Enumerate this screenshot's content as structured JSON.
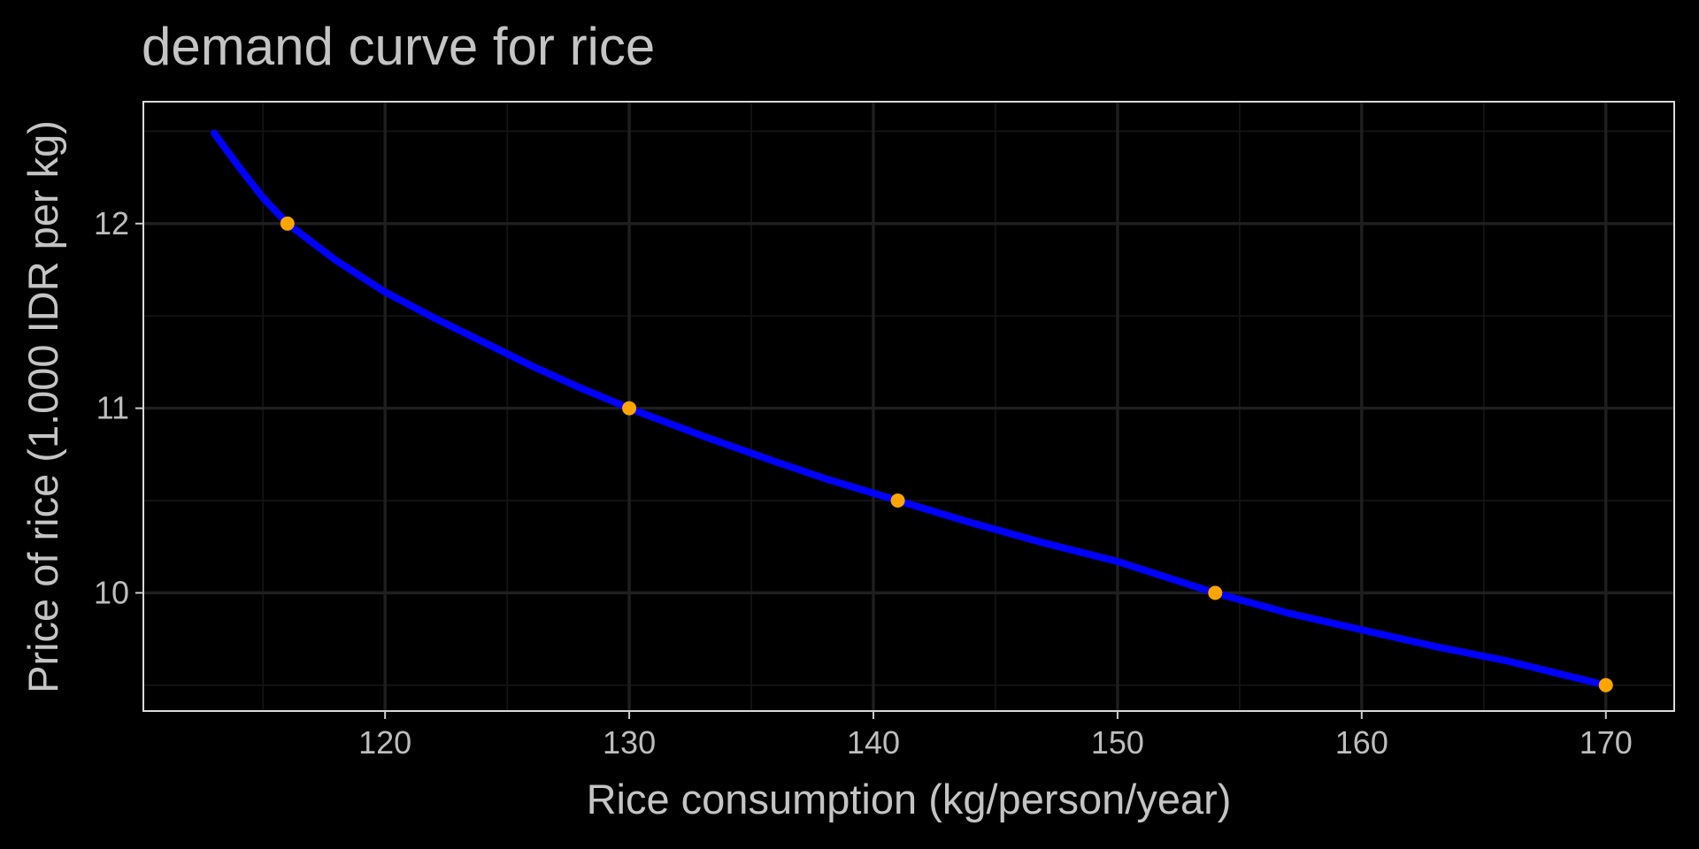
{
  "chart_data": {
    "type": "line",
    "title": "demand curve for rice",
    "xlabel": "Rice consumption (kg/person/year)",
    "ylabel": "Price of rice (1.000 IDR per kg)",
    "xlim": [
      110.1,
      172.8
    ],
    "ylim": [
      9.36,
      12.66
    ],
    "x_ticks": [
      120,
      130,
      140,
      150,
      160,
      170
    ],
    "y_ticks": [
      10,
      11,
      12
    ],
    "x_minor_ticks": [
      115,
      125,
      135,
      145,
      155,
      165
    ],
    "y_minor_ticks": [
      9.5,
      10.5,
      11.5,
      12.5
    ],
    "grid": true,
    "background": "dark",
    "series": [
      {
        "kind": "curve",
        "color": "#0000ff",
        "x": [
          113.0,
          114.0,
          115.0,
          116.0,
          118.0,
          120.0,
          122.0,
          124.0,
          126.0,
          128.0,
          130.0,
          133.0,
          136.0,
          138.0,
          141.0,
          144.0,
          147.0,
          150.0,
          154.0,
          157.0,
          160.0,
          163.0,
          166.0,
          170.0
        ],
        "y": [
          12.49,
          12.31,
          12.14,
          12.0,
          11.8,
          11.63,
          11.49,
          11.36,
          11.23,
          11.11,
          11.0,
          10.85,
          10.71,
          10.62,
          10.5,
          10.38,
          10.27,
          10.17,
          10.0,
          9.89,
          9.8,
          9.71,
          9.63,
          9.5
        ]
      },
      {
        "kind": "points",
        "color": "#ffa500",
        "x": [
          116,
          130,
          141,
          154,
          170
        ],
        "y": [
          12.0,
          11.0,
          10.5,
          10.0,
          9.5
        ]
      }
    ]
  }
}
